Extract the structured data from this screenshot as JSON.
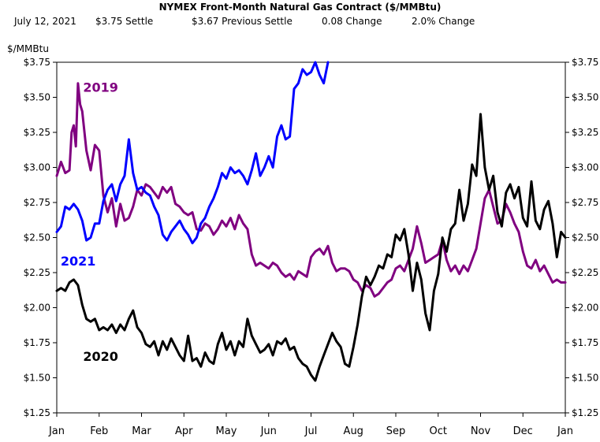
{
  "header": {
    "title": "NYMEX Front-Month Natural Gas Contract ($/MMBtu)",
    "date": "July 12, 2021",
    "settle": "$3.75 Settle",
    "previous_settle": "$3.67 Previous Settle",
    "change": "0.08 Change",
    "pct_change": "2.0%  Change"
  },
  "chart_data": {
    "type": "line",
    "title": "NYMEX Front-Month Natural Gas Contract ($/MMBtu)",
    "ylabel": "$/MMBtu",
    "xlabel": "",
    "ylim": [
      1.25,
      3.75
    ],
    "y_ticks": [
      1.25,
      1.5,
      1.75,
      2.0,
      2.25,
      2.5,
      2.75,
      3.0,
      3.25,
      3.5,
      3.75
    ],
    "y_tick_labels": [
      "$1.25",
      "$1.50",
      "$1.75",
      "$2.00",
      "$2.25",
      "$2.50",
      "$2.75",
      "$3.00",
      "$3.25",
      "$3.50",
      "$3.75"
    ],
    "x_tick_labels": [
      "Jan",
      "Feb",
      "Mar",
      "Apr",
      "May",
      "Jun",
      "Jul",
      "Aug",
      "Sep",
      "Oct",
      "Nov",
      "Dec",
      "Jan"
    ],
    "x_unit": "month index (0 = Jan 1, 12 = next Jan 1)",
    "series": [
      {
        "name": "2019",
        "color": "#800080",
        "x": [
          0,
          0.1,
          0.2,
          0.3,
          0.35,
          0.4,
          0.45,
          0.5,
          0.55,
          0.6,
          0.7,
          0.8,
          0.9,
          1.0,
          1.1,
          1.2,
          1.3,
          1.4,
          1.5,
          1.6,
          1.7,
          1.8,
          1.9,
          2.0,
          2.1,
          2.2,
          2.3,
          2.4,
          2.5,
          2.6,
          2.7,
          2.8,
          2.9,
          3.0,
          3.1,
          3.2,
          3.3,
          3.4,
          3.5,
          3.6,
          3.7,
          3.8,
          3.9,
          4.0,
          4.1,
          4.2,
          4.3,
          4.4,
          4.5,
          4.6,
          4.7,
          4.8,
          4.9,
          5.0,
          5.1,
          5.2,
          5.3,
          5.4,
          5.5,
          5.6,
          5.7,
          5.8,
          5.9,
          6.0,
          6.1,
          6.2,
          6.3,
          6.4,
          6.5,
          6.6,
          6.7,
          6.8,
          6.9,
          7.0,
          7.1,
          7.2,
          7.3,
          7.4,
          7.5,
          7.6,
          7.7,
          7.8,
          7.9,
          8.0,
          8.1,
          8.2,
          8.3,
          8.4,
          8.5,
          8.6,
          8.7,
          8.8,
          8.9,
          9.0,
          9.1,
          9.2,
          9.3,
          9.4,
          9.5,
          9.6,
          9.7,
          9.8,
          9.9,
          10.0,
          10.1,
          10.2,
          10.3,
          10.4,
          10.5,
          10.6,
          10.7,
          10.8,
          10.9,
          11.0,
          11.1,
          11.2,
          11.3,
          11.4,
          11.5,
          11.6,
          11.7,
          11.8,
          11.9,
          12.0
        ],
        "values": [
          2.94,
          3.04,
          2.96,
          2.98,
          3.25,
          3.3,
          3.15,
          3.6,
          3.45,
          3.4,
          3.12,
          2.98,
          3.16,
          3.12,
          2.8,
          2.68,
          2.78,
          2.58,
          2.74,
          2.62,
          2.64,
          2.72,
          2.84,
          2.8,
          2.88,
          2.86,
          2.82,
          2.78,
          2.86,
          2.82,
          2.86,
          2.74,
          2.72,
          2.68,
          2.66,
          2.68,
          2.56,
          2.55,
          2.6,
          2.58,
          2.52,
          2.56,
          2.62,
          2.58,
          2.64,
          2.56,
          2.66,
          2.6,
          2.56,
          2.38,
          2.3,
          2.32,
          2.3,
          2.28,
          2.32,
          2.3,
          2.25,
          2.22,
          2.24,
          2.2,
          2.26,
          2.24,
          2.22,
          2.36,
          2.4,
          2.42,
          2.38,
          2.44,
          2.32,
          2.26,
          2.28,
          2.28,
          2.26,
          2.2,
          2.18,
          2.12,
          2.16,
          2.14,
          2.08,
          2.1,
          2.14,
          2.18,
          2.2,
          2.28,
          2.3,
          2.26,
          2.34,
          2.42,
          2.58,
          2.46,
          2.32,
          2.34,
          2.36,
          2.38,
          2.48,
          2.34,
          2.26,
          2.3,
          2.24,
          2.3,
          2.26,
          2.34,
          2.42,
          2.6,
          2.78,
          2.84,
          2.72,
          2.6,
          2.62,
          2.74,
          2.68,
          2.6,
          2.54,
          2.4,
          2.3,
          2.28,
          2.34,
          2.26,
          2.3,
          2.24,
          2.18,
          2.2,
          2.18,
          2.18
        ]
      },
      {
        "name": "2020",
        "color": "#000000",
        "x": [
          0,
          0.1,
          0.2,
          0.3,
          0.4,
          0.5,
          0.6,
          0.7,
          0.8,
          0.9,
          1.0,
          1.1,
          1.2,
          1.3,
          1.4,
          1.5,
          1.6,
          1.7,
          1.8,
          1.9,
          2.0,
          2.1,
          2.2,
          2.3,
          2.4,
          2.5,
          2.6,
          2.7,
          2.8,
          2.9,
          3.0,
          3.1,
          3.2,
          3.3,
          3.4,
          3.5,
          3.6,
          3.7,
          3.8,
          3.9,
          4.0,
          4.1,
          4.2,
          4.3,
          4.4,
          4.5,
          4.6,
          4.7,
          4.8,
          4.9,
          5.0,
          5.1,
          5.2,
          5.3,
          5.4,
          5.5,
          5.6,
          5.7,
          5.8,
          5.9,
          6.0,
          6.1,
          6.2,
          6.3,
          6.4,
          6.5,
          6.6,
          6.7,
          6.8,
          6.9,
          7.0,
          7.1,
          7.2,
          7.3,
          7.4,
          7.5,
          7.6,
          7.7,
          7.8,
          7.9,
          8.0,
          8.1,
          8.2,
          8.3,
          8.4,
          8.5,
          8.6,
          8.7,
          8.8,
          8.9,
          9.0,
          9.1,
          9.2,
          9.3,
          9.4,
          9.5,
          9.6,
          9.7,
          9.8,
          9.9,
          10.0,
          10.1,
          10.2,
          10.3,
          10.4,
          10.5,
          10.6,
          10.7,
          10.8,
          10.9,
          11.0,
          11.1,
          11.2,
          11.3,
          11.4,
          11.5,
          11.6,
          11.7,
          11.8,
          11.9,
          12.0
        ],
        "values": [
          2.12,
          2.14,
          2.12,
          2.18,
          2.2,
          2.16,
          2.02,
          1.92,
          1.9,
          1.92,
          1.84,
          1.86,
          1.84,
          1.88,
          1.82,
          1.88,
          1.84,
          1.92,
          1.98,
          1.86,
          1.82,
          1.74,
          1.72,
          1.76,
          1.66,
          1.76,
          1.7,
          1.78,
          1.72,
          1.66,
          1.62,
          1.8,
          1.62,
          1.64,
          1.58,
          1.68,
          1.62,
          1.6,
          1.74,
          1.82,
          1.7,
          1.76,
          1.66,
          1.76,
          1.72,
          1.92,
          1.8,
          1.74,
          1.68,
          1.7,
          1.74,
          1.66,
          1.76,
          1.74,
          1.78,
          1.7,
          1.72,
          1.64,
          1.6,
          1.58,
          1.52,
          1.48,
          1.58,
          1.66,
          1.74,
          1.82,
          1.76,
          1.72,
          1.6,
          1.58,
          1.72,
          1.88,
          2.08,
          2.22,
          2.16,
          2.22,
          2.3,
          2.28,
          2.38,
          2.36,
          2.52,
          2.48,
          2.56,
          2.38,
          2.12,
          2.32,
          2.2,
          1.96,
          1.84,
          2.12,
          2.24,
          2.5,
          2.4,
          2.56,
          2.6,
          2.84,
          2.62,
          2.74,
          3.02,
          2.94,
          3.38,
          3.0,
          2.84,
          2.94,
          2.68,
          2.58,
          2.82,
          2.88,
          2.78,
          2.86,
          2.64,
          2.58,
          2.9,
          2.62,
          2.56,
          2.7,
          2.76,
          2.6,
          2.36,
          2.54,
          2.5
        ]
      },
      {
        "name": "2021",
        "color": "#0000ff",
        "x": [
          0,
          0.1,
          0.2,
          0.3,
          0.4,
          0.5,
          0.6,
          0.7,
          0.8,
          0.9,
          1.0,
          1.1,
          1.2,
          1.3,
          1.4,
          1.5,
          1.6,
          1.7,
          1.8,
          1.9,
          2.0,
          2.1,
          2.2,
          2.3,
          2.4,
          2.5,
          2.6,
          2.7,
          2.8,
          2.9,
          3.0,
          3.1,
          3.2,
          3.3,
          3.4,
          3.5,
          3.6,
          3.7,
          3.8,
          3.9,
          4.0,
          4.1,
          4.2,
          4.3,
          4.4,
          4.5,
          4.6,
          4.7,
          4.8,
          4.9,
          5.0,
          5.1,
          5.2,
          5.3,
          5.4,
          5.5,
          5.6,
          5.7,
          5.8,
          5.9,
          6.0,
          6.1,
          6.2,
          6.3,
          6.4
        ],
        "values": [
          2.54,
          2.58,
          2.72,
          2.7,
          2.74,
          2.7,
          2.62,
          2.48,
          2.5,
          2.6,
          2.6,
          2.76,
          2.84,
          2.88,
          2.76,
          2.88,
          2.94,
          3.2,
          2.96,
          2.84,
          2.86,
          2.82,
          2.8,
          2.72,
          2.66,
          2.52,
          2.48,
          2.54,
          2.58,
          2.62,
          2.56,
          2.52,
          2.46,
          2.5,
          2.6,
          2.64,
          2.72,
          2.78,
          2.86,
          2.96,
          2.92,
          3.0,
          2.96,
          2.98,
          2.94,
          2.88,
          2.98,
          3.1,
          2.94,
          3.0,
          3.08,
          3.0,
          3.22,
          3.3,
          3.2,
          3.22,
          3.56,
          3.6,
          3.7,
          3.66,
          3.68,
          3.75,
          3.66,
          3.6,
          3.75
        ]
      }
    ],
    "series_label_2019": "2019",
    "series_label_2020": "2020",
    "series_label_2021": "2021"
  }
}
